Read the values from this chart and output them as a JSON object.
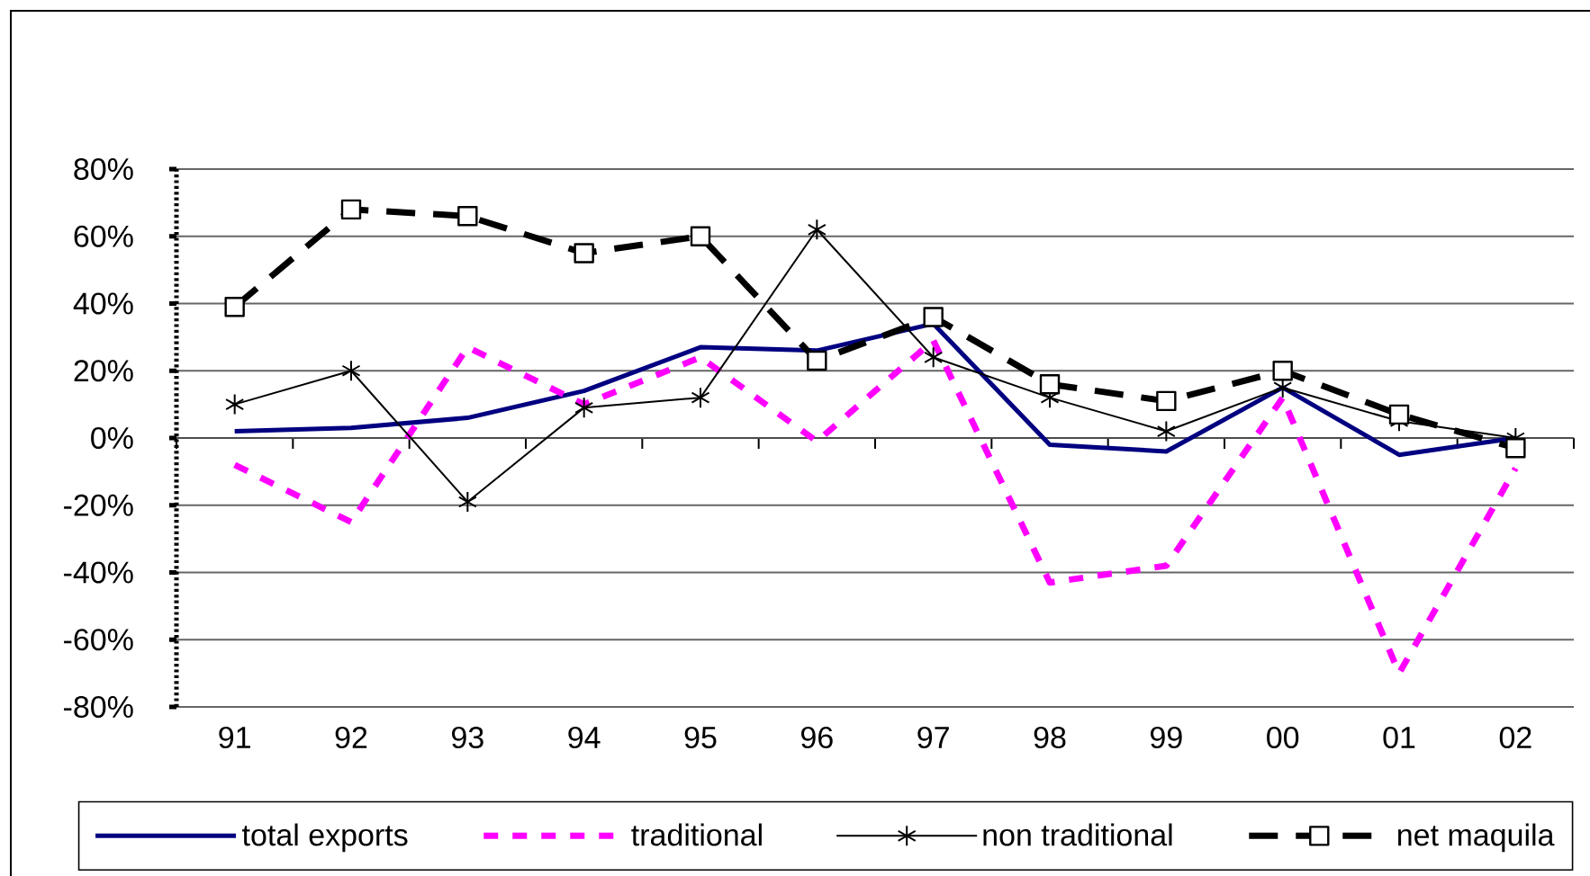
{
  "chart_data": {
    "type": "line",
    "categories": [
      "91",
      "92",
      "93",
      "94",
      "95",
      "96",
      "97",
      "98",
      "99",
      "00",
      "01",
      "02"
    ],
    "series": [
      {
        "name": "total exports",
        "color": "#000080",
        "line_style": "solid",
        "marker": "none",
        "values": [
          2,
          3,
          6,
          14,
          27,
          26,
          34,
          -2,
          -4,
          15,
          -5,
          0
        ]
      },
      {
        "name": "traditional",
        "color": "#ff00ff",
        "line_style": "dashed",
        "marker": "none",
        "values": [
          -8,
          -25,
          27,
          10,
          24,
          -1,
          29,
          -43,
          -38,
          12,
          -70,
          -9
        ]
      },
      {
        "name": "non traditional",
        "color": "#000000",
        "line_style": "solid",
        "marker": "cross",
        "values": [
          10,
          20,
          -19,
          9,
          12,
          62,
          24,
          12,
          2,
          15,
          5,
          0
        ]
      },
      {
        "name": "net maquila",
        "color": "#000000",
        "line_style": "dashed",
        "marker": "square",
        "values": [
          39,
          68,
          66,
          55,
          60,
          23,
          36,
          16,
          11,
          20,
          7,
          -3
        ]
      }
    ],
    "ylim": [
      -80,
      80
    ],
    "yticks": [
      {
        "value": -80,
        "label": "-80%"
      },
      {
        "value": -60,
        "label": "-60%"
      },
      {
        "value": -40,
        "label": "-40%"
      },
      {
        "value": -20,
        "label": "-20%"
      },
      {
        "value": 0,
        "label": "0%"
      },
      {
        "value": 20,
        "label": "20%"
      },
      {
        "value": 40,
        "label": "40%"
      },
      {
        "value": 60,
        "label": "60%"
      },
      {
        "value": 80,
        "label": "80%"
      }
    ],
    "grid": "y",
    "legend": "bottom"
  }
}
